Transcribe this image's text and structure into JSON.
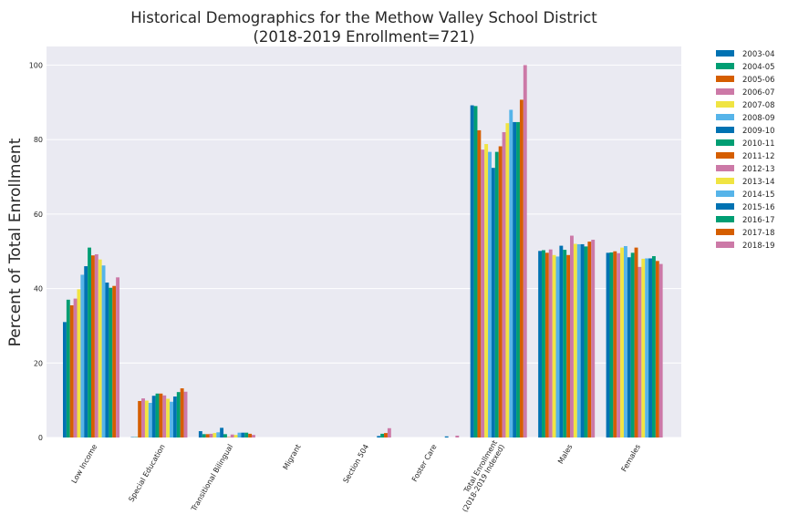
{
  "chart_data": {
    "type": "bar",
    "title": "Historical Demographics for the Methow Valley School District",
    "subtitle": "(2018-2019 Enrollment=721)",
    "xlabel": "",
    "ylabel": "Percent of Total Enrollment",
    "ylim": [
      0,
      105
    ],
    "yticks": [
      0,
      20,
      40,
      60,
      80,
      100
    ],
    "grid": true,
    "legend_position": "outside-right",
    "categories": [
      "Low Income",
      "Special Education",
      "Transitional Bilingual",
      "Migrant",
      "Section 504",
      "Foster Care",
      "Total Enrollment\n(2018-2019 Indexed)",
      "Males",
      "Females"
    ],
    "series": [
      {
        "name": "2003-04",
        "color": "#0072b2",
        "values": [
          31.0,
          0.1,
          1.7,
          0,
          0,
          0,
          89.2,
          50.1,
          49.6
        ]
      },
      {
        "name": "2004-05",
        "color": "#009e73",
        "values": [
          37.0,
          0.1,
          0.9,
          0,
          0,
          0,
          89.0,
          50.3,
          49.7
        ]
      },
      {
        "name": "2005-06",
        "color": "#d55e00",
        "values": [
          35.5,
          9.8,
          0.9,
          0,
          0,
          0,
          82.5,
          49.6,
          50.0
        ]
      },
      {
        "name": "2006-07",
        "color": "#cc79a7",
        "values": [
          37.3,
          10.5,
          1.0,
          0,
          0,
          0,
          77.3,
          50.5,
          49.5
        ]
      },
      {
        "name": "2007-08",
        "color": "#f0e442",
        "values": [
          39.8,
          9.9,
          1.2,
          0,
          0,
          0,
          78.8,
          49.0,
          51.0
        ]
      },
      {
        "name": "2008-09",
        "color": "#56b4e9",
        "values": [
          43.7,
          9.3,
          1.4,
          0,
          0,
          0,
          76.7,
          48.6,
          51.4
        ]
      },
      {
        "name": "2009-10",
        "color": "#0072b2",
        "values": [
          46.0,
          11.2,
          2.6,
          0,
          0,
          0,
          72.4,
          51.5,
          48.4
        ]
      },
      {
        "name": "2010-11",
        "color": "#009e73",
        "values": [
          51.0,
          11.8,
          0.9,
          0,
          0,
          0,
          76.7,
          50.4,
          49.6
        ]
      },
      {
        "name": "2011-12",
        "color": "#d55e00",
        "values": [
          48.9,
          11.8,
          0.1,
          0,
          0,
          0,
          78.2,
          49.0,
          51.0
        ]
      },
      {
        "name": "2012-13",
        "color": "#cc79a7",
        "values": [
          49.2,
          11.3,
          0.8,
          0,
          0,
          0,
          82.0,
          54.2,
          45.8
        ]
      },
      {
        "name": "2013-14",
        "color": "#f0e442",
        "values": [
          47.8,
          10.4,
          0.7,
          0,
          0,
          0,
          84.4,
          52.0,
          48.0
        ]
      },
      {
        "name": "2014-15",
        "color": "#56b4e9",
        "values": [
          46.2,
          9.6,
          1.3,
          0,
          0,
          0,
          88.0,
          51.9,
          48.1
        ]
      },
      {
        "name": "2015-16",
        "color": "#0072b2",
        "values": [
          41.6,
          11.0,
          1.3,
          0,
          0.4,
          0.3,
          84.7,
          51.9,
          48.1
        ]
      },
      {
        "name": "2016-17",
        "color": "#009e73",
        "values": [
          40.2,
          12.2,
          1.3,
          0,
          1.0,
          0,
          84.7,
          51.3,
          48.7
        ]
      },
      {
        "name": "2017-18",
        "color": "#d55e00",
        "values": [
          40.7,
          13.2,
          1.0,
          0,
          1.2,
          0,
          90.7,
          52.6,
          47.4
        ]
      },
      {
        "name": "2018-19",
        "color": "#cc79a7",
        "values": [
          43.0,
          12.3,
          0.7,
          0,
          2.5,
          0.5,
          100.0,
          53.1,
          46.6
        ]
      }
    ]
  }
}
